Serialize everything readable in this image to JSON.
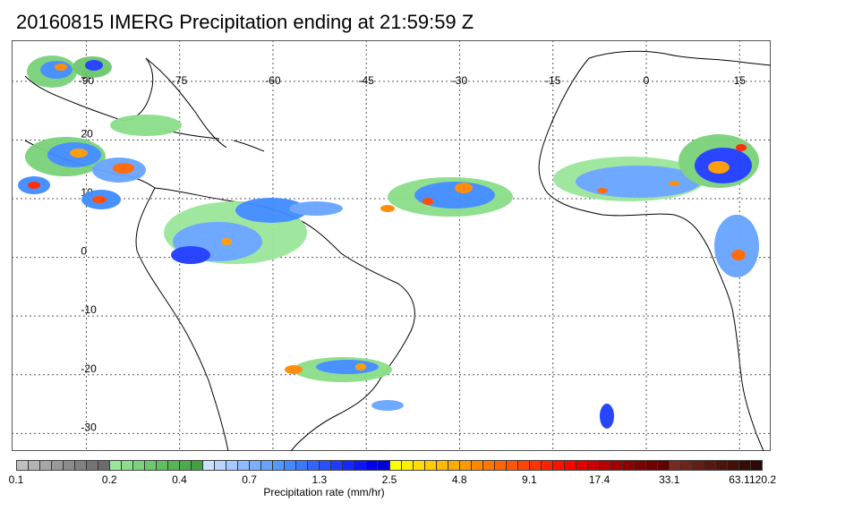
{
  "title": "20160815 IMERG Precipitation ending at 21:59:59 Z",
  "map": {
    "lon_labels": [
      "-90",
      "-75",
      "-60",
      "-45",
      "-30",
      "-15",
      "0",
      "15"
    ],
    "lon_values": [
      -90,
      -75,
      -60,
      -45,
      -30,
      -15,
      0,
      15
    ],
    "lat_labels": [
      "30",
      "20",
      "10",
      "0",
      "-10",
      "-20",
      "-30"
    ],
    "lat_values": [
      30,
      20,
      10,
      0,
      -10,
      -20,
      -30
    ],
    "lon_range": [
      -102,
      20
    ],
    "lat_range": [
      37,
      -33
    ]
  },
  "colorbar": {
    "title": "Precipitation rate (mm/hr)",
    "tick_labels": [
      "0.1",
      "0.2",
      "0.4",
      "0.7",
      "1.3",
      "2.5",
      "4.8",
      "9.1",
      "17.4",
      "33.1",
      "63.1",
      "120.2"
    ],
    "colors": [
      "#bfbfbf",
      "#b3b3b3",
      "#a6a6a6",
      "#999999",
      "#8c8c8c",
      "#808080",
      "#737373",
      "#6b6b6b",
      "#9ae69a",
      "#8ade8a",
      "#7ad27a",
      "#6cc86c",
      "#60be60",
      "#56b456",
      "#4caa4c",
      "#42a042",
      "#cce0ff",
      "#b8d4ff",
      "#a4c8ff",
      "#90bcff",
      "#7cb0ff",
      "#68a4ff",
      "#5498ff",
      "#408cff",
      "#3c78ff",
      "#3264ff",
      "#2850ff",
      "#1e3cff",
      "#1428ff",
      "#0a14ff",
      "#0000f0",
      "#0000d8",
      "#ffff00",
      "#ffee00",
      "#ffdd00",
      "#ffcc00",
      "#ffbb00",
      "#ffaa00",
      "#ff9900",
      "#ff8800",
      "#ff7700",
      "#ff6600",
      "#ff5500",
      "#ff4400",
      "#ff3300",
      "#ff2200",
      "#ff1100",
      "#ff0000",
      "#e00000",
      "#cc0000",
      "#b80000",
      "#a40000",
      "#900000",
      "#800000",
      "#700000",
      "#600000",
      "#7a2a1e",
      "#6e2418",
      "#621e14",
      "#561810",
      "#4c140c",
      "#421008",
      "#380c06",
      "#300804"
    ]
  }
}
